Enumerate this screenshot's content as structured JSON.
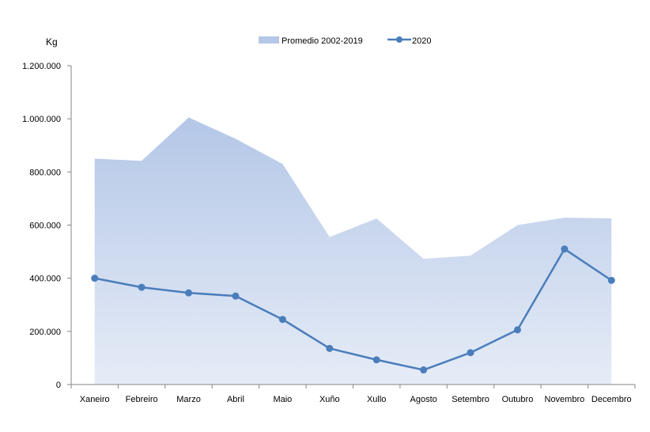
{
  "chart_data": {
    "type": "line",
    "title": "",
    "xlabel": "",
    "ylabel": "Kg",
    "ylim": [
      0,
      1200000
    ],
    "y_ticks": [
      0,
      200000,
      400000,
      600000,
      800000,
      1000000,
      1200000
    ],
    "y_tick_labels": [
      "0",
      "200.000",
      "400.000",
      "600.000",
      "800.000",
      "1.000.000",
      "1.200.000"
    ],
    "categories": [
      "Xaneiro",
      "Febreiro",
      "Marzo",
      "Abril",
      "Maio",
      "Xuño",
      "Xullo",
      "Agosto",
      "Setembro",
      "Outubro",
      "Novembro",
      "Decembro"
    ],
    "grid": false,
    "legend_position": "top",
    "series": [
      {
        "name": "Promedio 2002-2019",
        "kind": "area",
        "color": "#b4c7e7",
        "values": [
          850000,
          842000,
          1005000,
          925000,
          830000,
          555000,
          625000,
          473000,
          485000,
          600000,
          628000,
          625000
        ]
      },
      {
        "name": "2020",
        "kind": "line",
        "color": "#4a7ebb",
        "values": [
          400000,
          366000,
          345000,
          333000,
          245000,
          136000,
          93000,
          55000,
          120000,
          206000,
          510000,
          392000
        ]
      }
    ]
  }
}
